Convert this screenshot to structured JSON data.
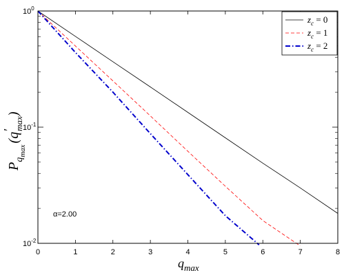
{
  "chart_data": {
    "type": "line",
    "xlabel": "q",
    "xlabel_sub": "max",
    "ylabel": {
      "main": "P",
      "sub": "q",
      "subsub": "max",
      "arg_open": "(q",
      "arg_prime": "′",
      "arg_sub": "max",
      "arg_close": ")"
    },
    "xlim": [
      0,
      8
    ],
    "ylim": [
      0.01,
      1
    ],
    "yscale": "log",
    "grid": false,
    "legend_position": "top-right",
    "x_ticks": [
      0,
      1,
      2,
      3,
      4,
      5,
      6,
      7,
      8
    ],
    "x_tick_labels": [
      "0",
      "1",
      "2",
      "3",
      "4",
      "5",
      "6",
      "7",
      "8"
    ],
    "y_ticks": [
      {
        "value": 1,
        "base": "10",
        "exp": "0"
      },
      {
        "value": 0.1,
        "base": "10",
        "exp": "-1"
      },
      {
        "value": 0.01,
        "base": "10",
        "exp": "-2"
      }
    ],
    "annotation": "α=2.00",
    "series": [
      {
        "name": "z",
        "name_sub": "c",
        "name_suffix": " = 0",
        "color": "#000000",
        "dash": "solid",
        "x": [
          0,
          1,
          2,
          3,
          4,
          5,
          6,
          7,
          8
        ],
        "y": [
          1,
          0.605,
          0.366,
          0.222,
          0.134,
          0.081,
          0.049,
          0.03,
          0.0181
        ]
      },
      {
        "name": "z",
        "name_sub": "c",
        "name_suffix": " = 1",
        "color": "#ff0000",
        "dash": "dashed",
        "x": [
          0,
          1,
          2,
          3,
          4,
          5,
          6,
          7
        ],
        "y": [
          1,
          0.5,
          0.25,
          0.125,
          0.062,
          0.031,
          0.0157,
          0.0095
        ]
      },
      {
        "name": "z",
        "name_sub": "c",
        "name_suffix": " = 2",
        "color": "#0000cc",
        "dash": "dashdot",
        "x": [
          0,
          1,
          2,
          3,
          4,
          5,
          5.9
        ],
        "y": [
          1,
          0.44,
          0.2,
          0.088,
          0.039,
          0.0173,
          0.0097
        ]
      }
    ]
  }
}
